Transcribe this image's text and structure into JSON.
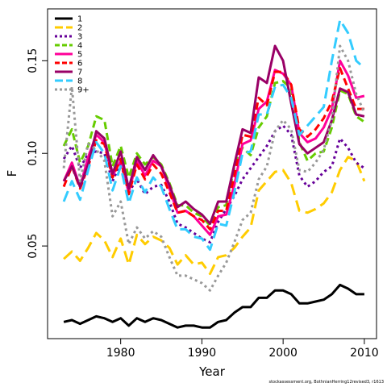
{
  "chart_data": {
    "type": "line",
    "xlabel": "Year",
    "ylabel": "F",
    "xlim": [
      1971.0,
      2011.5
    ],
    "ylim": [
      0.0,
      0.178
    ],
    "x_ticks": [
      1980,
      1990,
      2000,
      2010
    ],
    "y_ticks": [
      0.05,
      0.1,
      0.15
    ],
    "y_tick_labels": [
      "0.05",
      "0.10",
      "0.15"
    ],
    "legend_position": "top-left",
    "grid": false,
    "x": [
      1973,
      1974,
      1975,
      1976,
      1977,
      1978,
      1979,
      1980,
      1981,
      1982,
      1983,
      1984,
      1985,
      1986,
      1987,
      1988,
      1989,
      1990,
      1991,
      1992,
      1993,
      1994,
      1995,
      1996,
      1997,
      1998,
      1999,
      2000,
      2001,
      2002,
      2003,
      2004,
      2005,
      2006,
      2007,
      2008,
      2009,
      2010
    ],
    "series": [
      {
        "name": "1",
        "color": "#000000",
        "dash": "solid",
        "width": 3,
        "values": [
          0.009,
          0.01,
          0.008,
          0.01,
          0.012,
          0.011,
          0.009,
          0.011,
          0.007,
          0.011,
          0.009,
          0.011,
          0.01,
          0.008,
          0.006,
          0.007,
          0.007,
          0.006,
          0.006,
          0.009,
          0.01,
          0.014,
          0.017,
          0.017,
          0.022,
          0.022,
          0.026,
          0.026,
          0.024,
          0.019,
          0.019,
          0.02,
          0.021,
          0.024,
          0.029,
          0.027,
          0.024,
          0.024
        ]
      },
      {
        "name": "2",
        "color": "#FFCC00",
        "dash": "long",
        "width": 3,
        "values": [
          0.043,
          0.047,
          0.042,
          0.049,
          0.057,
          0.053,
          0.044,
          0.054,
          0.04,
          0.056,
          0.051,
          0.055,
          0.053,
          0.049,
          0.04,
          0.045,
          0.04,
          0.041,
          0.035,
          0.044,
          0.045,
          0.049,
          0.055,
          0.06,
          0.08,
          0.085,
          0.09,
          0.091,
          0.084,
          0.069,
          0.068,
          0.07,
          0.073,
          0.079,
          0.091,
          0.098,
          0.096,
          0.085
        ]
      },
      {
        "name": "3",
        "color": "#660099",
        "dash": "dot",
        "width": 3,
        "values": [
          0.097,
          0.104,
          0.092,
          0.1,
          0.101,
          0.1,
          0.085,
          0.095,
          0.079,
          0.086,
          0.078,
          0.082,
          0.083,
          0.074,
          0.062,
          0.06,
          0.057,
          0.054,
          0.052,
          0.063,
          0.07,
          0.077,
          0.086,
          0.092,
          0.098,
          0.104,
          0.112,
          0.115,
          0.11,
          0.088,
          0.082,
          0.085,
          0.09,
          0.093,
          0.108,
          0.103,
          0.095,
          0.092
        ]
      },
      {
        "name": "4",
        "color": "#66CC00",
        "dash": "medium",
        "width": 3,
        "values": [
          0.104,
          0.113,
          0.095,
          0.104,
          0.12,
          0.118,
          0.093,
          0.104,
          0.087,
          0.1,
          0.094,
          0.098,
          0.094,
          0.084,
          0.072,
          0.072,
          0.068,
          0.066,
          0.061,
          0.071,
          0.072,
          0.093,
          0.103,
          0.099,
          0.114,
          0.12,
          0.138,
          0.139,
          0.135,
          0.106,
          0.096,
          0.1,
          0.101,
          0.114,
          0.134,
          0.132,
          0.12,
          0.117
        ]
      },
      {
        "name": "5",
        "color": "#FF0099",
        "dash": "solid",
        "width": 3,
        "values": [
          0.085,
          0.095,
          0.082,
          0.098,
          0.11,
          0.106,
          0.088,
          0.096,
          0.079,
          0.096,
          0.088,
          0.096,
          0.093,
          0.081,
          0.068,
          0.069,
          0.066,
          0.061,
          0.056,
          0.066,
          0.067,
          0.083,
          0.105,
          0.107,
          0.124,
          0.128,
          0.145,
          0.143,
          0.137,
          0.111,
          0.106,
          0.108,
          0.114,
          0.124,
          0.15,
          0.142,
          0.13,
          0.131
        ]
      },
      {
        "name": "6",
        "color": "#FF0000",
        "dash": "medium",
        "width": 3,
        "values": [
          0.082,
          0.093,
          0.081,
          0.093,
          0.107,
          0.105,
          0.087,
          0.097,
          0.078,
          0.094,
          0.086,
          0.094,
          0.089,
          0.079,
          0.068,
          0.069,
          0.066,
          0.064,
          0.059,
          0.069,
          0.069,
          0.088,
          0.11,
          0.109,
          0.13,
          0.126,
          0.144,
          0.144,
          0.137,
          0.113,
          0.109,
          0.113,
          0.119,
          0.128,
          0.146,
          0.135,
          0.124,
          0.124
        ]
      },
      {
        "name": "7",
        "color": "#990066",
        "dash": "solid",
        "width": 3,
        "values": [
          0.085,
          0.093,
          0.082,
          0.094,
          0.112,
          0.108,
          0.089,
          0.101,
          0.081,
          0.098,
          0.091,
          0.099,
          0.093,
          0.083,
          0.071,
          0.074,
          0.07,
          0.067,
          0.062,
          0.074,
          0.074,
          0.094,
          0.113,
          0.111,
          0.141,
          0.138,
          0.158,
          0.15,
          0.127,
          0.105,
          0.1,
          0.103,
          0.106,
          0.118,
          0.135,
          0.133,
          0.121,
          0.12
        ]
      },
      {
        "name": "8",
        "color": "#33CCFF",
        "dash": "long",
        "width": 3,
        "values": [
          0.074,
          0.085,
          0.075,
          0.091,
          0.106,
          0.1,
          0.08,
          0.093,
          0.073,
          0.087,
          0.079,
          0.087,
          0.082,
          0.07,
          0.059,
          0.059,
          0.055,
          0.054,
          0.048,
          0.062,
          0.061,
          0.079,
          0.1,
          0.101,
          0.121,
          0.121,
          0.136,
          0.137,
          0.13,
          0.11,
          0.115,
          0.12,
          0.125,
          0.15,
          0.172,
          0.165,
          0.15,
          0.146
        ]
      },
      {
        "name": "9+",
        "color": "#999999",
        "dash": "dot",
        "width": 3,
        "values": [
          0.092,
          0.136,
          0.085,
          0.105,
          0.102,
          0.096,
          0.066,
          0.074,
          0.051,
          0.06,
          0.054,
          0.058,
          0.055,
          0.044,
          0.034,
          0.034,
          0.032,
          0.03,
          0.026,
          0.034,
          0.041,
          0.052,
          0.064,
          0.068,
          0.086,
          0.093,
          0.112,
          0.118,
          0.113,
          0.091,
          0.09,
          0.095,
          0.102,
          0.118,
          0.158,
          0.15,
          0.132,
          0.122
        ]
      }
    ]
  },
  "footer_text": "stockassessment.org, BothnianHerring12revised3, r1613"
}
